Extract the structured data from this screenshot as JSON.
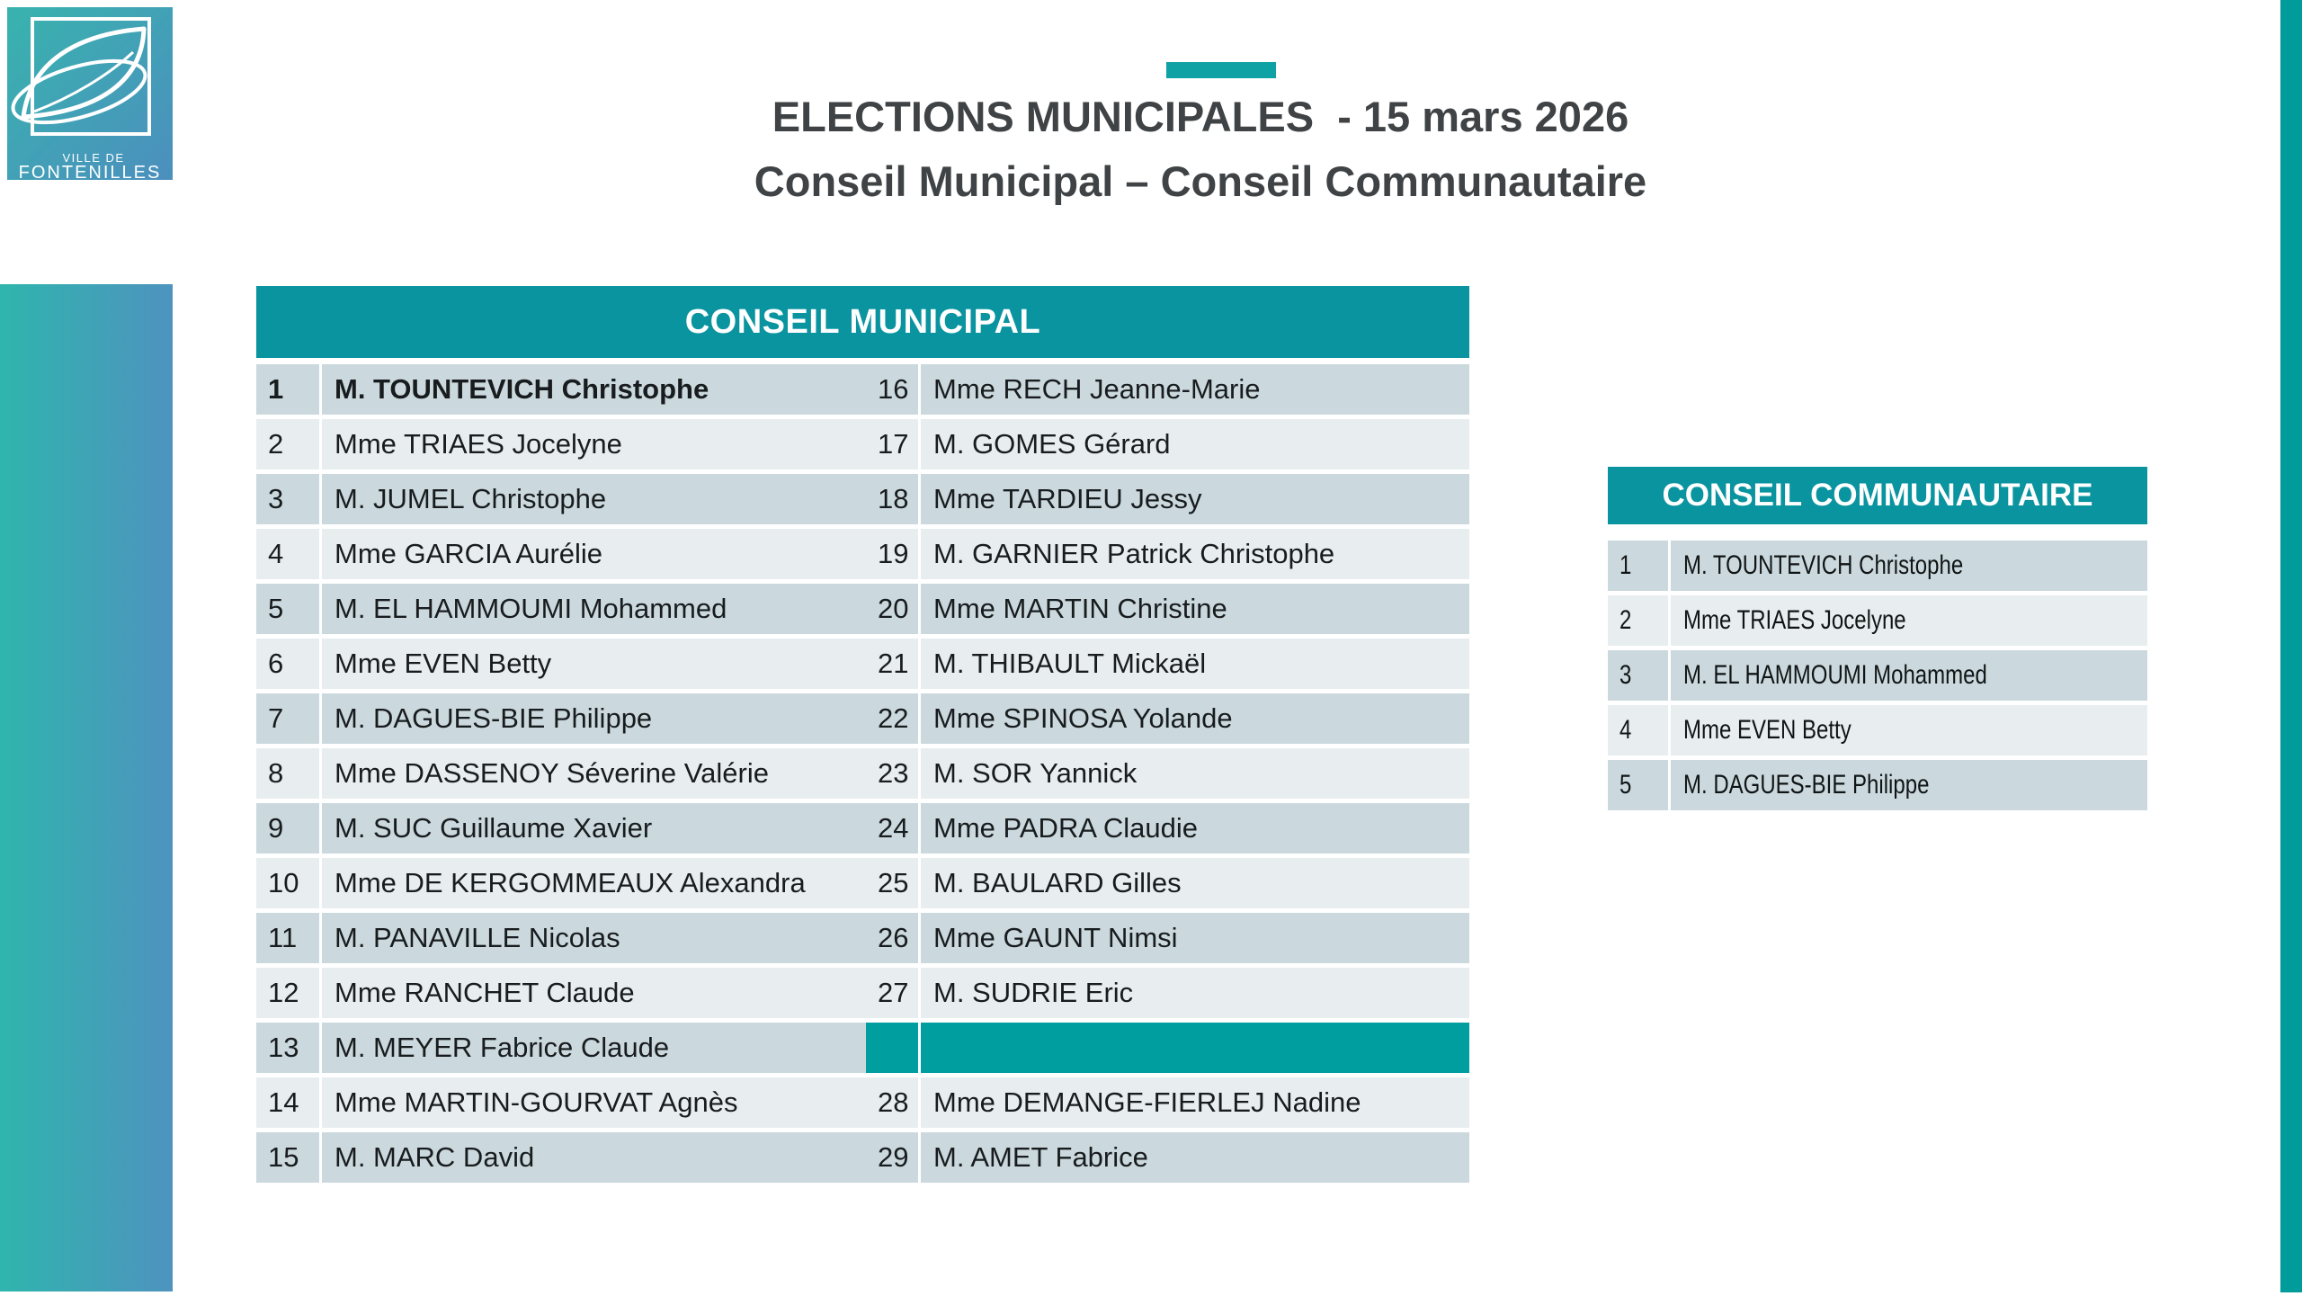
{
  "logo": {
    "line1": "VILLE DE",
    "line2": "FONTENILLES"
  },
  "title": {
    "line1": "ELECTIONS MUNICIPALES  - 15 mars 2026",
    "line2": "Conseil Municipal – Conseil Communautaire"
  },
  "municipal": {
    "header": "CONSEIL MUNICIPAL",
    "left_rows": [
      {
        "num": "1",
        "name": "M. TOUNTEVICH Christophe",
        "bold": true
      },
      {
        "num": "2",
        "name": "Mme TRIAES Jocelyne"
      },
      {
        "num": "3",
        "name": "M. JUMEL Christophe"
      },
      {
        "num": "4",
        "name": "Mme GARCIA Aurélie"
      },
      {
        "num": "5",
        "name": "M. EL HAMMOUMI Mohammed"
      },
      {
        "num": "6",
        "name": "Mme EVEN Betty"
      },
      {
        "num": "7",
        "name": "M. DAGUES-BIE Philippe"
      },
      {
        "num": "8",
        "name": "Mme DASSENOY Séverine Valérie"
      },
      {
        "num": "9",
        "name": "M. SUC Guillaume Xavier"
      },
      {
        "num": "10",
        "name": "Mme DE KERGOMMEAUX Alexandra"
      },
      {
        "num": "11",
        "name": "M. PANAVILLE Nicolas"
      },
      {
        "num": "12",
        "name": "Mme RANCHET Claude"
      },
      {
        "num": "13",
        "name": "M. MEYER Fabrice Claude"
      },
      {
        "num": "14",
        "name": "Mme MARTIN-GOURVAT Agnès"
      },
      {
        "num": "15",
        "name": "M. MARC David"
      }
    ],
    "right_rows": [
      {
        "num": "16",
        "name": "Mme RECH Jeanne-Marie"
      },
      {
        "num": "17",
        "name": "M. GOMES Gérard"
      },
      {
        "num": "18",
        "name": "Mme TARDIEU Jessy"
      },
      {
        "num": "19",
        "name": "M. GARNIER Patrick Christophe"
      },
      {
        "num": "20",
        "name": "Mme MARTIN Christine"
      },
      {
        "num": "21",
        "name": "M. THIBAULT Mickaël"
      },
      {
        "num": "22",
        "name": "Mme SPINOSA Yolande"
      },
      {
        "num": "23",
        "name": "M. SOR Yannick"
      },
      {
        "num": "24",
        "name": "Mme PADRA Claudie"
      },
      {
        "num": "25",
        "name": "M. BAULARD Gilles"
      },
      {
        "num": "26",
        "name": "Mme GAUNT Nimsi"
      },
      {
        "num": "27",
        "name": "M. SUDRIE Eric"
      },
      {
        "teal_filled": true
      },
      {
        "num": "28",
        "name": "Mme DEMANGE-FIERLEJ Nadine"
      },
      {
        "num": "29",
        "name": "M. AMET Fabrice"
      }
    ]
  },
  "communautaire": {
    "header": "CONSEIL COMMUNAUTAIRE",
    "rows": [
      {
        "num": "1",
        "name": "M. TOUNTEVICH Christophe"
      },
      {
        "num": "2",
        "name": "Mme TRIAES Jocelyne"
      },
      {
        "num": "3",
        "name": "M. EL HAMMOUMI Mohammed"
      },
      {
        "num": "4",
        "name": "Mme EVEN Betty"
      },
      {
        "num": "5",
        "name": "M. DAGUES-BIE Philippe"
      }
    ]
  },
  "colors": {
    "teal_header": "#0994A0",
    "teal_accent": "#0FA2A5",
    "teal_solid_row": "#009E9E",
    "teal_right_bar": "#009B9B",
    "row_dark": "#CBD9DE",
    "row_light": "#E8EEF0",
    "sidebar_gradient_start": "#2FB5AD",
    "sidebar_gradient_end": "#4E93BF",
    "title_text": "#3F4345"
  }
}
